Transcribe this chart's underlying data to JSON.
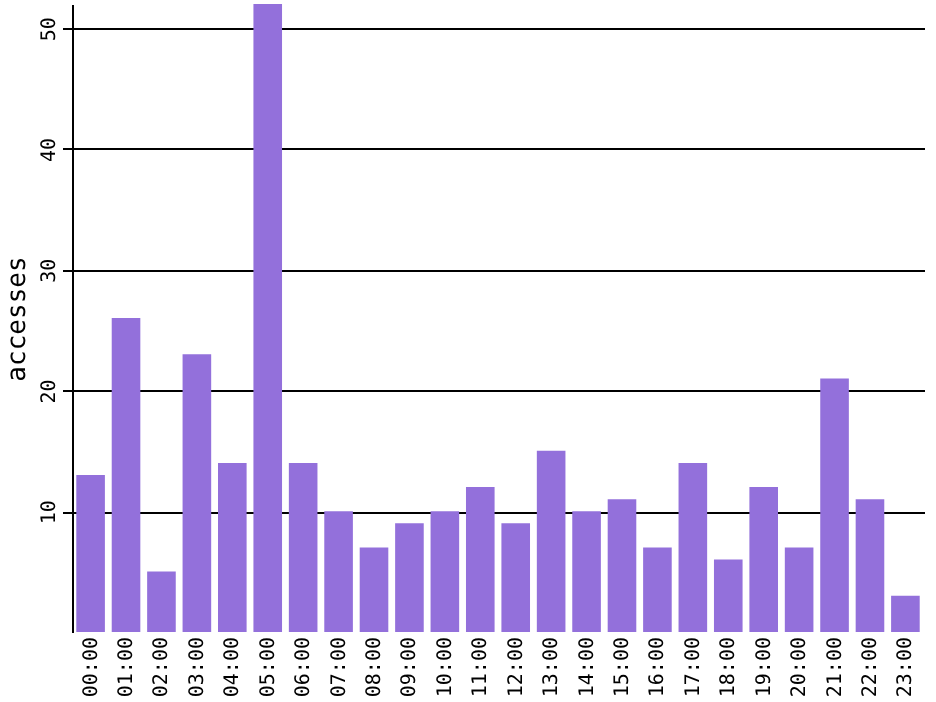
{
  "chart_data": {
    "type": "bar",
    "ylabel": "accesses",
    "categories": [
      "00:00",
      "01:00",
      "02:00",
      "03:00",
      "04:00",
      "05:00",
      "06:00",
      "07:00",
      "08:00",
      "09:00",
      "10:00",
      "11:00",
      "12:00",
      "13:00",
      "14:00",
      "15:00",
      "16:00",
      "17:00",
      "18:00",
      "19:00",
      "20:00",
      "21:00",
      "22:00",
      "23:00"
    ],
    "values": [
      13,
      26,
      5,
      23,
      14,
      52,
      14,
      10,
      7,
      9,
      10,
      12,
      9,
      15,
      10,
      11,
      7,
      14,
      6,
      12,
      7,
      21,
      11,
      3
    ],
    "color": "#9370db",
    "ylim": [
      0,
      52
    ],
    "yticks": [
      10,
      20,
      30,
      40,
      50
    ],
    "grid": "y"
  }
}
